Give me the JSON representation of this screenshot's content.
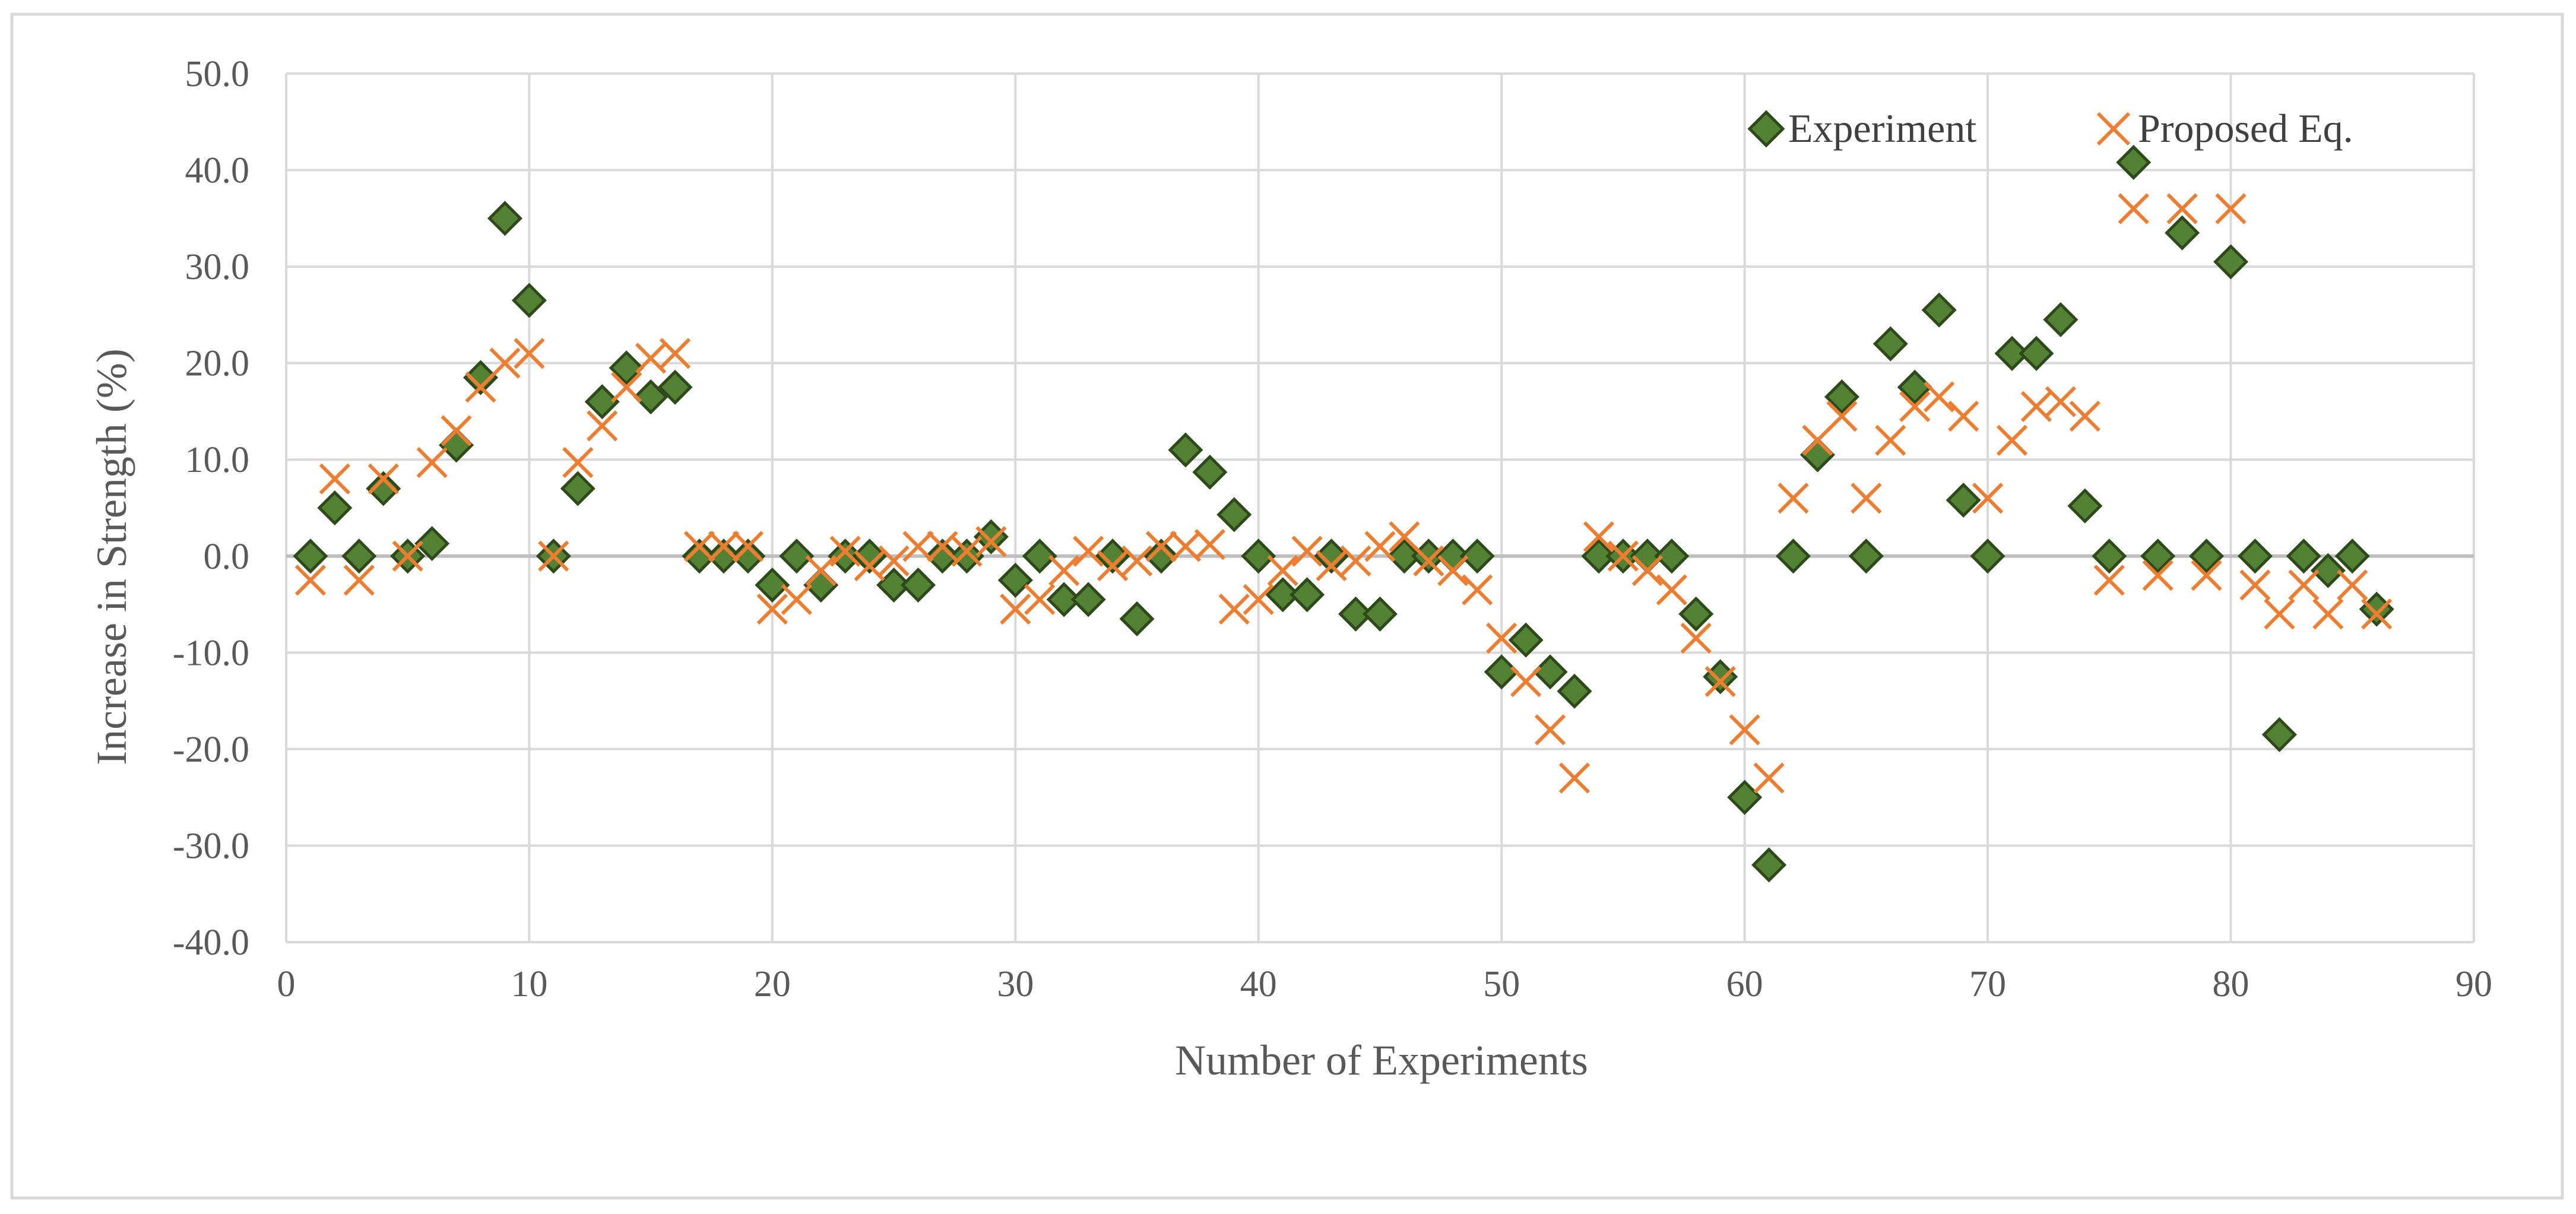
{
  "chart_data": {
    "type": "scatter",
    "title": "",
    "xlabel": "Number of Experiments",
    "ylabel": "Increase in Strength (%)",
    "xlim": [
      0,
      90
    ],
    "ylim": [
      -40,
      50
    ],
    "xticks": [
      0,
      10,
      20,
      30,
      40,
      50,
      60,
      70,
      80,
      90
    ],
    "yticks": [
      50,
      40,
      30,
      20,
      10,
      0,
      -10,
      -20,
      -30,
      -40
    ],
    "xtick_labels": [
      "0",
      "10",
      "20",
      "30",
      "40",
      "50",
      "60",
      "70",
      "80",
      "90"
    ],
    "ytick_labels": [
      "50.0",
      "40.0",
      "30.0",
      "20.0",
      "10.0",
      "0.0",
      "-10.0",
      "-20.0",
      "-30.0",
      "-40.0"
    ],
    "grid": true,
    "legend_position": "top-right",
    "series": [
      {
        "name": "Experiment",
        "marker": "diamond",
        "color": "#548235",
        "edge_color": "#2e4a1a",
        "x": [
          1,
          2,
          3,
          4,
          5,
          6,
          7,
          8,
          9,
          10,
          11,
          12,
          13,
          14,
          15,
          16,
          17,
          18,
          19,
          20,
          21,
          22,
          23,
          24,
          25,
          26,
          27,
          28,
          29,
          30,
          31,
          32,
          33,
          34,
          35,
          36,
          37,
          38,
          39,
          40,
          41,
          42,
          43,
          44,
          45,
          46,
          47,
          48,
          49,
          50,
          51,
          52,
          53,
          54,
          55,
          56,
          57,
          58,
          59,
          60,
          61,
          62,
          63,
          64,
          65,
          66,
          67,
          68,
          69,
          70,
          71,
          72,
          73,
          74,
          75,
          76,
          77,
          78,
          79,
          80,
          81,
          82,
          83,
          84,
          85,
          86
        ],
        "y": [
          0,
          5,
          0,
          7,
          0,
          1.3,
          11.5,
          18.5,
          35,
          26.5,
          0,
          7,
          16,
          19.5,
          16.5,
          17.5,
          0,
          0,
          0,
          -3,
          0,
          -3,
          0,
          0,
          -3,
          -3,
          0,
          0,
          2,
          -2.5,
          0,
          -4.5,
          -4.5,
          0,
          -6.5,
          0,
          11,
          8.7,
          4.3,
          0,
          -4,
          -4,
          0,
          -6,
          -6,
          0,
          0,
          0,
          0,
          -12,
          -8.7,
          -12,
          -14,
          0,
          0,
          0,
          0,
          -6,
          -12.5,
          -25,
          -32,
          0,
          10.5,
          16.5,
          0,
          22,
          17.5,
          25.5,
          5.8,
          0,
          21,
          21,
          24.5,
          5.2,
          0,
          40.8,
          0,
          33.5,
          0,
          30.5,
          0,
          -18.5,
          0,
          -1.5,
          0,
          -5.5
        ]
      },
      {
        "name": "Proposed Eq.",
        "marker": "x",
        "color": "#ED7D31",
        "x": [
          1,
          2,
          3,
          4,
          5,
          6,
          7,
          8,
          9,
          10,
          11,
          12,
          13,
          14,
          15,
          16,
          17,
          18,
          19,
          20,
          21,
          22,
          23,
          24,
          25,
          26,
          27,
          28,
          29,
          30,
          31,
          32,
          33,
          34,
          35,
          36,
          37,
          38,
          39,
          40,
          41,
          42,
          43,
          44,
          45,
          46,
          47,
          48,
          49,
          50,
          51,
          52,
          53,
          54,
          55,
          56,
          57,
          58,
          59,
          60,
          61,
          62,
          63,
          64,
          65,
          66,
          67,
          68,
          69,
          70,
          71,
          72,
          73,
          74,
          75,
          76,
          77,
          78,
          79,
          80,
          81,
          82,
          83,
          84,
          85,
          86
        ],
        "y": [
          -2.5,
          8,
          -2.5,
          8,
          0,
          9.7,
          13,
          17.5,
          20,
          21,
          0,
          9.7,
          13.5,
          17.5,
          20.5,
          21,
          1,
          1,
          1,
          -5.5,
          -4.5,
          -1.5,
          0.5,
          -1,
          -0.5,
          1,
          1,
          0.5,
          1.5,
          -5.5,
          -4.5,
          -1.5,
          0.5,
          -1,
          -0.5,
          1,
          1,
          1.2,
          -5.5,
          -4.5,
          -1.5,
          0.5,
          -1,
          -0.5,
          1,
          2,
          -0.5,
          -1.5,
          -3.5,
          -8.5,
          -13,
          -18,
          -23,
          2,
          0,
          -1.5,
          -3.5,
          -8.5,
          -13,
          -18,
          -23,
          6,
          12,
          14.5,
          6,
          12,
          15.5,
          16.5,
          14.5,
          6,
          12,
          15.5,
          16,
          14.5,
          -2.5,
          36,
          -2,
          36,
          -2,
          36,
          -3,
          -6,
          -3,
          -6,
          -3,
          -6
        ]
      }
    ]
  }
}
